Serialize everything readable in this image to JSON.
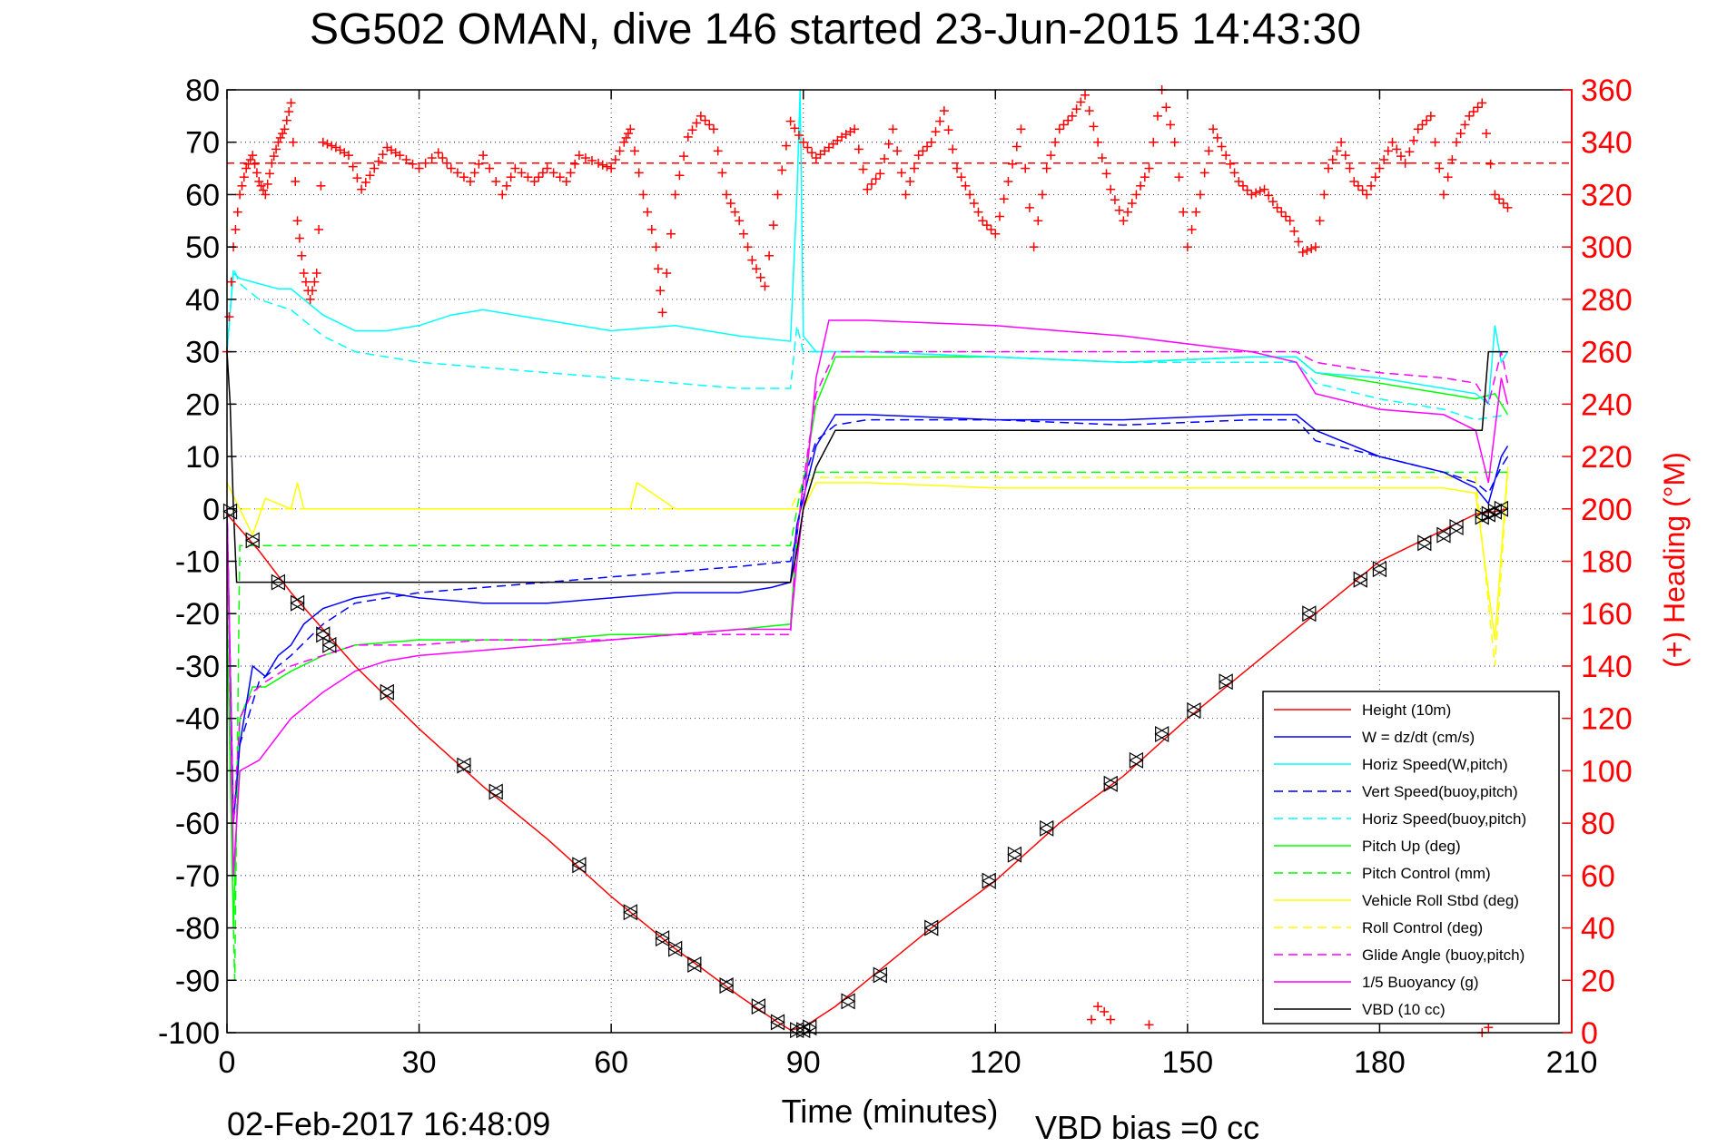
{
  "chart_data": {
    "type": "line",
    "title": "SG502 OMAN, dive 146 started 23-Jun-2015 14:43:30",
    "xlabel": "Time (minutes)",
    "ylabel_right": "(+) Heading (°M)",
    "xlim": [
      0,
      210
    ],
    "ylim_left": [
      -100,
      80
    ],
    "ylim_right": [
      0,
      360
    ],
    "xticks": [
      0,
      30,
      60,
      90,
      120,
      150,
      180,
      210
    ],
    "yticks_left": [
      -100,
      -90,
      -80,
      -70,
      -60,
      -50,
      -40,
      -30,
      -20,
      -10,
      0,
      10,
      20,
      30,
      40,
      50,
      60,
      70,
      80
    ],
    "yticks_right": [
      0,
      20,
      40,
      60,
      80,
      100,
      120,
      140,
      160,
      180,
      200,
      220,
      240,
      260,
      280,
      300,
      320,
      340,
      360
    ],
    "grid": true,
    "legend_position": "bottom-right",
    "heading_reference": 332,
    "colors": {
      "red": "#ff0000",
      "blue": "#0000ff",
      "cyan": "#00ffff",
      "green": "#00ff00",
      "yellow": "#ffff00",
      "magenta": "#ff00ff",
      "black": "#000000"
    },
    "series": [
      {
        "name": "Height (10m)",
        "color": "#ff0000",
        "style": "solid",
        "x": [
          0,
          5,
          10,
          20,
          30,
          40,
          50,
          60,
          70,
          80,
          86,
          88,
          90,
          95,
          100,
          110,
          120,
          130,
          140,
          150,
          160,
          170,
          180,
          190,
          195,
          198,
          200
        ],
        "y": [
          -1,
          -8,
          -16,
          -30,
          -42,
          -53,
          -63,
          -74,
          -84,
          -93,
          -98,
          -99.5,
          -99,
          -95,
          -90,
          -80,
          -71,
          -60,
          -51,
          -40,
          -30,
          -20,
          -10,
          -4,
          -1,
          -0.5,
          0
        ]
      },
      {
        "name": "W = dz/dt (cm/s)",
        "color": "#0000ff",
        "style": "solid",
        "x": [
          0,
          1,
          2,
          4,
          6,
          8,
          10,
          12,
          15,
          20,
          25,
          30,
          40,
          50,
          60,
          70,
          80,
          85,
          88,
          89,
          90,
          92,
          95,
          100,
          120,
          140,
          160,
          167,
          170,
          180,
          190,
          195,
          197,
          199,
          200
        ],
        "y": [
          0,
          -60,
          -45,
          -30,
          -32,
          -28,
          -26,
          -22,
          -19,
          -17,
          -16,
          -17,
          -18,
          -18,
          -17,
          -16,
          -16,
          -15,
          -14,
          -3,
          2,
          12,
          18,
          18,
          17,
          17,
          18,
          18,
          15,
          10,
          7,
          4,
          1,
          10,
          12
        ]
      },
      {
        "name": "Horiz Speed(W,pitch)",
        "color": "#00ffff",
        "style": "solid",
        "x": [
          0,
          1,
          2,
          5,
          8,
          10,
          12,
          15,
          20,
          25,
          30,
          35,
          40,
          50,
          60,
          70,
          80,
          88,
          89,
          89.5,
          90,
          92,
          95,
          100,
          120,
          140,
          160,
          167,
          170,
          180,
          190,
          195,
          197,
          198,
          199,
          200
        ],
        "y": [
          30,
          45,
          44,
          43,
          42,
          42,
          40,
          37,
          34,
          34,
          35,
          37,
          38,
          36,
          34,
          35,
          33,
          32,
          60,
          80,
          33,
          30,
          30,
          30,
          29,
          28,
          29,
          29,
          26,
          25,
          23,
          22,
          20,
          35,
          28,
          30
        ]
      },
      {
        "name": "Vert Speed(buoy,pitch)",
        "color": "#0000ff",
        "style": "dashed",
        "x": [
          0,
          1,
          2,
          5,
          10,
          15,
          20,
          30,
          40,
          50,
          60,
          70,
          80,
          88,
          89,
          90,
          92,
          95,
          100,
          120,
          140,
          160,
          167,
          170,
          180,
          190,
          195,
          197,
          199,
          200
        ],
        "y": [
          0,
          -60,
          -45,
          -33,
          -28,
          -22,
          -18,
          -16,
          -15,
          -14,
          -13,
          -12,
          -11,
          -10,
          -5,
          5,
          13,
          16,
          17,
          17,
          16,
          17,
          17,
          13,
          10,
          7,
          5,
          3,
          8,
          10
        ]
      },
      {
        "name": "Horiz Speed(buoy,pitch)",
        "color": "#00ffff",
        "style": "dashed",
        "x": [
          0,
          1,
          2,
          5,
          10,
          15,
          20,
          25,
          30,
          40,
          50,
          60,
          70,
          80,
          88,
          89,
          90,
          92,
          95,
          100,
          120,
          140,
          160,
          167,
          170,
          180,
          190,
          195,
          200
        ],
        "y": [
          30,
          46,
          43,
          40,
          38,
          33,
          30,
          29,
          28,
          27,
          26,
          25,
          24,
          23,
          23,
          35,
          30,
          30,
          30,
          30,
          29,
          28,
          28,
          28,
          24,
          21,
          19,
          17,
          18
        ]
      },
      {
        "name": "Pitch Up (deg)",
        "color": "#00ff00",
        "style": "solid",
        "x": [
          0,
          1,
          2,
          4,
          6,
          10,
          15,
          20,
          30,
          40,
          50,
          60,
          70,
          80,
          88,
          89,
          90,
          92,
          95,
          100,
          120,
          140,
          160,
          167,
          170,
          180,
          190,
          195,
          198,
          200
        ],
        "y": [
          -20,
          -80,
          -40,
          -34,
          -34,
          -31,
          -28,
          -26,
          -25,
          -25,
          -25,
          -24,
          -24,
          -23,
          -22,
          -5,
          5,
          20,
          29,
          29,
          29,
          28,
          29,
          29,
          26,
          24,
          22,
          21,
          22,
          18
        ]
      },
      {
        "name": "Pitch Control (mm)",
        "color": "#00ff00",
        "style": "dashed",
        "x": [
          0,
          1,
          1.2,
          2,
          5,
          10,
          20,
          50,
          88,
          89,
          90,
          92,
          100,
          150,
          195,
          198,
          200
        ],
        "y": [
          0,
          -80,
          -90,
          -7,
          -7,
          -7,
          -7,
          -7,
          -7,
          0,
          6,
          7,
          7,
          7,
          7,
          7,
          7
        ]
      },
      {
        "name": "Vehicle Roll Stbd (deg)",
        "color": "#ffff00",
        "style": "solid",
        "x": [
          0,
          2,
          4,
          6,
          10,
          11,
          12,
          20,
          30,
          40,
          50,
          60,
          63,
          64,
          70,
          80,
          88,
          90,
          92,
          94,
          100,
          120,
          150,
          170,
          180,
          190,
          195,
          198,
          200
        ],
        "y": [
          5,
          0,
          -5,
          2,
          0,
          5,
          0,
          0,
          0,
          0,
          0,
          0,
          0,
          5,
          0,
          0,
          0,
          0,
          5,
          5,
          5,
          4,
          4,
          4,
          4,
          4,
          3,
          -25,
          8
        ]
      },
      {
        "name": "Roll Control (deg)",
        "color": "#ffff00",
        "style": "dashed",
        "x": [
          0,
          2,
          5,
          10,
          20,
          50,
          88,
          90,
          92,
          100,
          150,
          195,
          198,
          200
        ],
        "y": [
          0,
          0,
          0,
          0,
          0,
          0,
          0,
          5,
          6,
          6,
          6,
          6,
          -30,
          7
        ]
      },
      {
        "name": "Glide Angle (buoy,pitch)",
        "color": "#ff00ff",
        "style": "dashed",
        "x": [
          0,
          1,
          2,
          4,
          6,
          10,
          15,
          20,
          30,
          40,
          50,
          60,
          70,
          80,
          88,
          89,
          90,
          92,
          95,
          100,
          120,
          140,
          160,
          167,
          170,
          180,
          190,
          195,
          197,
          199,
          200
        ],
        "y": [
          0,
          -60,
          -40,
          -35,
          -33,
          -30,
          -28,
          -26,
          -26,
          -25,
          -25,
          -25,
          -24,
          -24,
          -24,
          -5,
          5,
          22,
          30,
          30,
          30,
          30,
          30,
          30,
          28,
          26,
          25,
          24,
          20,
          30,
          24
        ]
      },
      {
        "name": "1/5 Buoyancy (g)",
        "color": "#ff00ff",
        "style": "solid",
        "x": [
          0,
          1,
          2,
          5,
          10,
          15,
          20,
          25,
          30,
          40,
          50,
          60,
          70,
          80,
          88,
          89,
          90,
          92,
          94,
          95,
          100,
          120,
          140,
          160,
          167,
          170,
          180,
          190,
          195,
          197,
          199,
          200
        ],
        "y": [
          0,
          -70,
          -50,
          -48,
          -40,
          -35,
          -31,
          -29,
          -28,
          -27,
          -26,
          -25,
          -24,
          -23,
          -23,
          -10,
          0,
          25,
          36,
          36,
          36,
          35,
          33,
          30,
          28,
          22,
          19,
          18,
          15,
          5,
          25,
          20
        ]
      },
      {
        "name": "VBD (10 cc)",
        "color": "#000000",
        "style": "solid",
        "x": [
          0,
          0.5,
          1,
          1.5,
          5,
          20,
          50,
          88,
          89,
          90,
          92,
          95,
          100,
          150,
          195,
          196,
          197,
          200
        ],
        "y": [
          30,
          20,
          0,
          -14,
          -14,
          -14,
          -14,
          -14,
          -8,
          0,
          8,
          15,
          15,
          15,
          15,
          15,
          30,
          30
        ]
      }
    ],
    "heading_series": {
      "name": "Heading",
      "marker": "+",
      "color": "#ff0000",
      "x": [
        0,
        1,
        2,
        3,
        4,
        5,
        6,
        7,
        8,
        9,
        10,
        11,
        12,
        13,
        14,
        15,
        17,
        19,
        21,
        23,
        25,
        27,
        30,
        33,
        35,
        38,
        40,
        43,
        45,
        48,
        50,
        53,
        55,
        58,
        60,
        62,
        63,
        65,
        67,
        68,
        70,
        72,
        74,
        76,
        78,
        80,
        82,
        84,
        86,
        88,
        90,
        92,
        94,
        96,
        98,
        100,
        102,
        104,
        106,
        108,
        110,
        112,
        114,
        116,
        118,
        120,
        122,
        124,
        126,
        128,
        130,
        132,
        134,
        136,
        138,
        140,
        142,
        144,
        146,
        148,
        150,
        152,
        154,
        156,
        158,
        160,
        162,
        164,
        166,
        168,
        170,
        172,
        174,
        176,
        178,
        180,
        182,
        184,
        186,
        188,
        190,
        192,
        194,
        196,
        198,
        200
      ],
      "y": [
        260,
        300,
        320,
        330,
        335,
        325,
        320,
        332,
        340,
        345,
        355,
        310,
        290,
        280,
        290,
        340,
        338,
        335,
        322,
        330,
        338,
        335,
        330,
        336,
        330,
        325,
        335,
        320,
        330,
        325,
        330,
        325,
        335,
        332,
        330,
        340,
        345,
        320,
        300,
        275,
        320,
        342,
        350,
        345,
        320,
        310,
        295,
        285,
        320,
        348,
        340,
        334,
        338,
        342,
        345,
        322,
        328,
        345,
        320,
        335,
        340,
        352,
        330,
        320,
        310,
        305,
        325,
        345,
        300,
        330,
        345,
        350,
        358,
        340,
        322,
        310,
        320,
        330,
        360,
        340,
        300,
        320,
        345,
        335,
        325,
        320,
        322,
        315,
        310,
        298,
        300,
        330,
        340,
        325,
        320,
        330,
        340,
        332,
        345,
        350,
        320,
        340,
        350,
        355,
        320,
        315
      ]
    },
    "heading_low_clusters": {
      "x": [
        135,
        136,
        137,
        138,
        144,
        196,
        197
      ],
      "y": [
        5,
        10,
        8,
        5,
        3,
        0,
        2
      ]
    },
    "markers": {
      "x": [
        0.5,
        4,
        8,
        11,
        15,
        16,
        25,
        37,
        42,
        55,
        63,
        68,
        70,
        73,
        78,
        83,
        86,
        89,
        90,
        91,
        97,
        102,
        110,
        119,
        123,
        128,
        138,
        142,
        146,
        151,
        156,
        169,
        177,
        180,
        187,
        190,
        192,
        196,
        197,
        198,
        199
      ],
      "y": [
        -0.5,
        -6,
        -14,
        -18,
        -24,
        -26,
        -35,
        -49,
        -54,
        -68,
        -77,
        -82,
        -84,
        -87,
        -91,
        -95,
        -98,
        -99.5,
        -99.5,
        -99,
        -94,
        -89,
        -80,
        -71,
        -66,
        -61,
        -52.5,
        -48,
        -43,
        -38.5,
        -33,
        -20,
        -13.5,
        -11.5,
        -6.5,
        -5,
        -3.5,
        -1.5,
        -1,
        -0.5,
        0
      ]
    },
    "footer_date": "02-Feb-2017 16:48:09",
    "footer_vbd": "VBD bias =0 cc"
  }
}
